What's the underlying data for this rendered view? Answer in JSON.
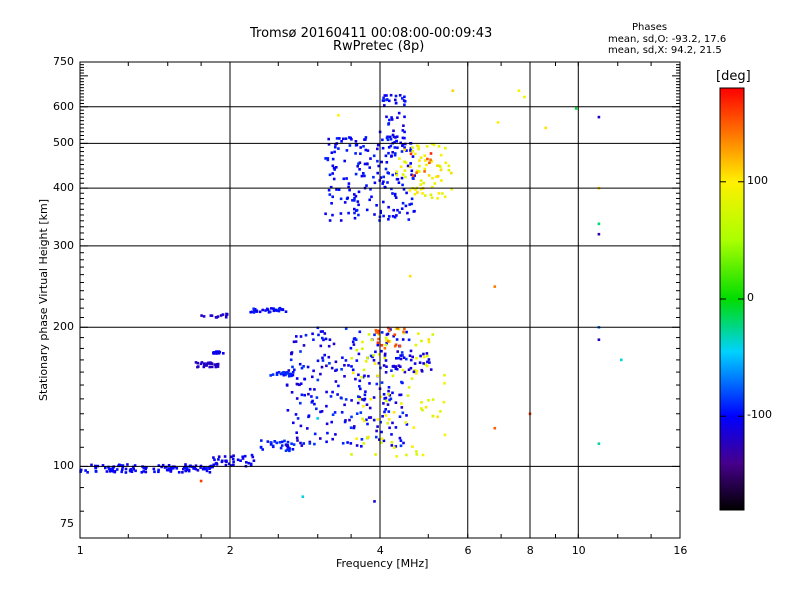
{
  "chart_data": {
    "type": "scatter",
    "title": "Tromsø 20160411 00:08:00-00:09:43",
    "subtitle": "RwPretec (8p)",
    "xlabel": "Frequency [MHz]",
    "ylabel": "Stationary phase Virtual Height [km]",
    "x_scale": "log2",
    "y_scale": "log",
    "xlim": [
      1,
      16
    ],
    "ylim": [
      70,
      750
    ],
    "x_ticks": [
      1,
      2,
      4,
      6,
      8,
      10,
      16
    ],
    "x_tick_labels": [
      "1",
      "2",
      "4",
      "6",
      "8",
      "10",
      "16"
    ],
    "x_gridlines": [
      2,
      4,
      6,
      8,
      10
    ],
    "y_ticks": [
      75,
      100,
      200,
      300,
      400,
      500,
      600,
      750
    ],
    "y_tick_labels": [
      "75",
      "100",
      "200",
      "300",
      "400",
      "500",
      "600",
      "750"
    ],
    "y_gridlines": [
      100,
      200,
      300,
      400,
      500,
      600
    ],
    "stats": {
      "heading": "Phases",
      "o_line": "mean, sd,O: -93.2, 17.6",
      "x_line": "mean, sd,X:  94.2, 21.5"
    },
    "colorbar": {
      "label": "[deg]",
      "range": [
        -180,
        180
      ],
      "ticks": [
        100,
        0,
        -100
      ],
      "tick_labels": [
        "100",
        "0",
        "-100"
      ]
    },
    "clusters": [
      {
        "name": "E-layer trace",
        "n": 120,
        "x": [
          1.0,
          1.85
        ],
        "y": [
          97,
          101
        ],
        "phase": [
          -110,
          -95
        ]
      },
      {
        "name": "Es trace 2-2.3",
        "n": 35,
        "x": [
          1.85,
          2.25
        ],
        "y": [
          100,
          106
        ],
        "phase": [
          -115,
          -95
        ]
      },
      {
        "name": "Es trace 2.4",
        "n": 30,
        "x": [
          2.3,
          2.7
        ],
        "y": [
          108,
          114
        ],
        "phase": [
          -100,
          -85
        ]
      },
      {
        "name": "F1 O-mode cloud",
        "n": 260,
        "x": [
          2.6,
          4.6
        ],
        "y": [
          110,
          200
        ],
        "phase": [
          -120,
          -85
        ]
      },
      {
        "name": "F1 X-mode cloud",
        "n": 90,
        "x": [
          3.5,
          5.4
        ],
        "y": [
          105,
          200
        ],
        "phase": [
          70,
          105
        ]
      },
      {
        "name": "F1 red cusp",
        "n": 18,
        "x": [
          3.9,
          4.5
        ],
        "y": [
          180,
          200
        ],
        "phase": [
          140,
          165
        ]
      },
      {
        "name": "Sporadic band 1.7-1.9",
        "n": 30,
        "x": [
          1.7,
          1.9
        ],
        "y": [
          164,
          168
        ],
        "phase": [
          -125,
          -115
        ]
      },
      {
        "name": "Band 1.85-1.95",
        "n": 12,
        "x": [
          1.85,
          1.95
        ],
        "y": [
          175,
          178
        ],
        "phase": [
          -110,
          -100
        ]
      },
      {
        "name": "Band 2.4-2.7",
        "n": 20,
        "x": [
          2.4,
          2.7
        ],
        "y": [
          157,
          160
        ],
        "phase": [
          -100,
          -85
        ]
      },
      {
        "name": "Band 1.75-2.0",
        "n": 14,
        "x": [
          1.75,
          2.0
        ],
        "y": [
          210,
          214
        ],
        "phase": [
          -125,
          -110
        ]
      },
      {
        "name": "Band 2.2-2.6",
        "n": 30,
        "x": [
          2.2,
          2.6
        ],
        "y": [
          215,
          220
        ],
        "phase": [
          -110,
          -90
        ]
      },
      {
        "name": "Blue 4-5 band",
        "n": 30,
        "x": [
          4.0,
          5.2
        ],
        "y": [
          160,
          178
        ],
        "phase": [
          -120,
          -100
        ]
      },
      {
        "name": "F2 O-mode",
        "n": 200,
        "x": [
          3.1,
          4.7
        ],
        "y": [
          340,
          520
        ],
        "phase": [
          -110,
          -90
        ]
      },
      {
        "name": "F2 O-mode top",
        "n": 40,
        "x": [
          4.0,
          4.5
        ],
        "y": [
          500,
          640
        ],
        "phase": [
          -115,
          -90
        ]
      },
      {
        "name": "F2 X-mode",
        "n": 70,
        "x": [
          4.3,
          5.6
        ],
        "y": [
          380,
          500
        ],
        "phase": [
          75,
          110
        ]
      },
      {
        "name": "F2 red points",
        "n": 8,
        "x": [
          4.6,
          5.3
        ],
        "y": [
          420,
          480
        ],
        "phase": [
          140,
          170
        ]
      }
    ],
    "scattered_points": [
      {
        "x": 1.75,
        "y": 93,
        "phase": 160
      },
      {
        "x": 2.8,
        "y": 86,
        "phase": -40
      },
      {
        "x": 3.9,
        "y": 84,
        "phase": -110
      },
      {
        "x": 3.3,
        "y": 575,
        "phase": 100
      },
      {
        "x": 5.6,
        "y": 650,
        "phase": 110
      },
      {
        "x": 6.9,
        "y": 555,
        "phase": 100
      },
      {
        "x": 7.6,
        "y": 650,
        "phase": 95
      },
      {
        "x": 7.8,
        "y": 630,
        "phase": 95
      },
      {
        "x": 8.6,
        "y": 540,
        "phase": 105
      },
      {
        "x": 9.9,
        "y": 595,
        "phase": -10
      },
      {
        "x": 11.0,
        "y": 570,
        "phase": -120
      },
      {
        "x": 11.0,
        "y": 400,
        "phase": 110
      },
      {
        "x": 11.0,
        "y": 335,
        "phase": -20
      },
      {
        "x": 11.0,
        "y": 318,
        "phase": -130
      },
      {
        "x": 6.8,
        "y": 245,
        "phase": 140
      },
      {
        "x": 4.6,
        "y": 258,
        "phase": 105
      },
      {
        "x": 11.0,
        "y": 200,
        "phase": -70
      },
      {
        "x": 11.0,
        "y": 188,
        "phase": -120
      },
      {
        "x": 12.2,
        "y": 170,
        "phase": -40
      },
      {
        "x": 8.0,
        "y": 130,
        "phase": 160
      },
      {
        "x": 6.8,
        "y": 121,
        "phase": 150
      },
      {
        "x": 11.0,
        "y": 112,
        "phase": -30
      },
      {
        "x": 3.0,
        "y": 127,
        "phase": -40
      }
    ]
  }
}
